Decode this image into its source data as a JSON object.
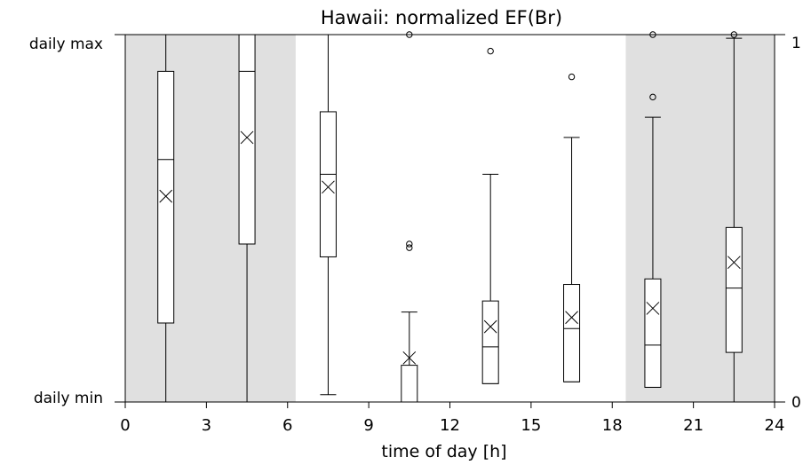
{
  "chart_data": {
    "type": "box",
    "title": "Hawaii: normalized EF(Br)",
    "xlabel": "time of day [h]",
    "ylabel_left_top": "daily max",
    "ylabel_left_bottom": "daily min",
    "right_ticks": [
      "1",
      "0"
    ],
    "xlim": [
      0,
      24
    ],
    "ylim": [
      0,
      1
    ],
    "xticks": [
      0,
      3,
      6,
      9,
      12,
      15,
      18,
      21,
      24
    ],
    "shaded_regions": [
      [
        0,
        6.3
      ],
      [
        18.5,
        24
      ]
    ],
    "shade_color": "#e0e0e0",
    "boxes": [
      {
        "x": 1.5,
        "whisker_low": 0.0,
        "q1": 0.215,
        "median": 0.66,
        "q3": 0.9,
        "whisker_high": 1.0,
        "mean": 0.56,
        "outliers": []
      },
      {
        "x": 4.5,
        "whisker_low": 0.0,
        "q1": 0.43,
        "median": 0.9,
        "q3": 1.0,
        "whisker_high": 1.0,
        "mean": 0.72,
        "outliers": []
      },
      {
        "x": 7.5,
        "whisker_low": 0.02,
        "q1": 0.395,
        "median": 0.62,
        "q3": 0.79,
        "whisker_high": 1.0,
        "mean": 0.585,
        "outliers": []
      },
      {
        "x": 10.5,
        "whisker_low": 0.0,
        "q1": 0.0,
        "median": 0.0,
        "q3": 0.1,
        "whisker_high": 0.245,
        "mean": 0.12,
        "outliers": [
          0.42,
          0.43,
          1.0
        ]
      },
      {
        "x": 13.5,
        "whisker_low": 0.05,
        "q1": 0.05,
        "median": 0.15,
        "q3": 0.275,
        "whisker_high": 0.62,
        "mean": 0.205,
        "outliers": [
          0.955
        ]
      },
      {
        "x": 16.5,
        "whisker_low": 0.055,
        "q1": 0.055,
        "median": 0.2,
        "q3": 0.32,
        "whisker_high": 0.72,
        "mean": 0.23,
        "outliers": [
          0.885
        ]
      },
      {
        "x": 19.5,
        "whisker_low": 0.04,
        "q1": 0.04,
        "median": 0.155,
        "q3": 0.335,
        "whisker_high": 0.775,
        "mean": 0.255,
        "outliers": [
          0.83,
          1.0
        ]
      },
      {
        "x": 22.5,
        "whisker_low": 0.0,
        "q1": 0.135,
        "median": 0.31,
        "q3": 0.475,
        "whisker_high": 0.99,
        "mean": 0.38,
        "outliers": [
          1.0
        ]
      }
    ]
  }
}
